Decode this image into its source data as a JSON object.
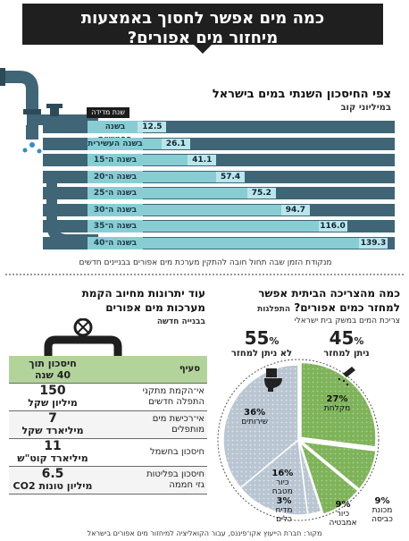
{
  "banner": {
    "title_line1": "כמה מים אפשר לחסוך באמצעות",
    "title_line2": "מיחזור מים אפורים?"
  },
  "annual": {
    "title": "צפי החיסכון השנתי במים בישראל",
    "unit": "במיליוני קוב",
    "badge": "שנת מדידה",
    "note": "מנקודת הזמן שבה תחול חובה להתקין מערכת מים אפורים בבניינים חדשים"
  },
  "chart_data": [
    {
      "type": "bar",
      "title": "צפי החיסכון השנתי במים בישראל",
      "ylabel": "במיליוני קוב",
      "categories": [
        "בשנה החמישית",
        "בשנה העשירית",
        "בשנה ה־15",
        "בשנה ה־20",
        "בשנה ה־25",
        "בשנה ה־30",
        "בשנה ה־35",
        "בשנה ה־40"
      ],
      "values": [
        12.5,
        26.1,
        41.1,
        57.4,
        75.2,
        94.7,
        116.0,
        139.3
      ],
      "value_labels": [
        "12.5",
        "26.1",
        "41.1",
        "57.4",
        "75.2",
        "94.7",
        "116.0",
        "139.3"
      ],
      "ylim": [
        0,
        139.3
      ],
      "colors": {
        "bar": "#3f6577",
        "label": "#88cdd4",
        "value": "#b9e6ea"
      }
    },
    {
      "type": "pie",
      "title": "כמה מהצריכה הביתית אפשר למחזר כמים אפורים?",
      "subtitle": "התפלגות צריכת המים במשק בית ישראלי",
      "categories": [
        "מקלחת",
        "מכונת כביסה",
        "כיור אמבטיה",
        "מדיח כלים",
        "כיור מטבח",
        "שירותים"
      ],
      "labels": [
        {
          "line1": "מקלחת",
          "pct": "27%"
        },
        {
          "line1": "מכונת",
          "line2": "כביסה",
          "pct": "9%"
        },
        {
          "line1": "כיור",
          "line2": "אמבטיה",
          "pct": "9%"
        },
        {
          "line1": "מדיח",
          "line2": "כלים",
          "pct": "3%"
        },
        {
          "line1": "כיור",
          "line2": "מטבח",
          "pct": "16%"
        },
        {
          "line1": "שירותים",
          "pct": "36%"
        }
      ],
      "values": [
        27,
        9,
        9,
        3,
        16,
        36
      ],
      "groups": [
        {
          "name": "ניתן למחזר",
          "pct": "45",
          "slices": [
            0,
            1,
            2
          ]
        },
        {
          "name": "לא ניתן למחזר",
          "pct": "55",
          "slices": [
            3,
            4,
            5
          ]
        }
      ],
      "colors": {
        "recyclable": "#7fb35a",
        "nonrecyclable": "#b9c6d2"
      }
    }
  ],
  "pie_section": {
    "title_line1": "כמה מהצריכה הביתית אפשר",
    "title_line2": "למחזר כמים אפורים?",
    "title_tail": "התפלגות",
    "subtitle": "צריכת המים במשק בית ישראלי",
    "recycle_pct": "45",
    "recycle_label": "ניתן למחזר",
    "nonrecycle_pct": "55",
    "nonrecycle_label": "לא ניתן למחזר",
    "percent_sign": "%"
  },
  "savings": {
    "title_line1": "עוד יתרונות מחיוב הקמת",
    "title_line2": "מערכות מים אפורים",
    "title_line3": "בבנייה חדשה",
    "col_item": "סעיף",
    "col_value_line1": "חיסכון תוך",
    "col_value_line2": "40 שנה",
    "rows": [
      {
        "label_line1": "אי־הקמת מתקני",
        "label_line2": "התפלה חדשים",
        "num": "150",
        "unit": "מיליון שקל"
      },
      {
        "label_line1": "אי־רכישת מים",
        "label_line2": "מותפלים",
        "num": "7",
        "unit": "מיליארד שקל"
      },
      {
        "label_line1": "חיסכון בחשמל",
        "label_line2": "",
        "num": "11",
        "unit": "מיליארד קוט\"ש"
      },
      {
        "label_line1": "חיסכון בפליטות",
        "label_line2": "גזי חממה",
        "num": "6.5",
        "unit": "מיליון טונות CO2"
      }
    ]
  },
  "source": "מקור: חברת הייעוץ אקו־פיננס, עבור הקואליציה למיחזור מים אפורים בישראל"
}
